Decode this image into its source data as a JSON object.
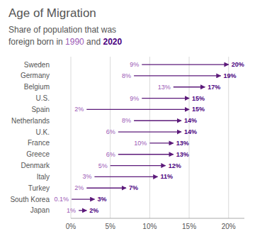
{
  "chart_data": {
    "type": "arrow",
    "orientation": "horizontal",
    "title": "Age of Migration",
    "subtitle": [
      "Share of population that was",
      "foreign born in 1990 and 2020"
    ],
    "categories": [
      "Sweden",
      "Germany",
      "Belgium",
      "U.S.",
      "Spain",
      "Netherlands",
      "U.K.",
      "France",
      "Greece",
      "Denmark",
      "Italy",
      "Turkey",
      "South Korea",
      "Japan"
    ],
    "color": "#5c1a7a",
    "series": [
      {
        "name": "1990",
        "color": "#9b59b6",
        "values": [
          9,
          8,
          13,
          9,
          2,
          8,
          6,
          10,
          6,
          5,
          3,
          2,
          0.1,
          1
        ],
        "value_labels": [
          "9%",
          "8%",
          "13%",
          "9%",
          "2%",
          "8%",
          "6%",
          "10%",
          "6%",
          "5%",
          "3%",
          "2%",
          "0.1%",
          "1%"
        ]
      },
      {
        "name": "2020",
        "color": "#4a0080",
        "values": [
          20,
          19,
          17,
          15,
          15,
          14,
          14,
          13,
          13,
          12,
          11,
          7,
          3,
          2
        ],
        "value_labels": [
          "20%",
          "19%",
          "17%",
          "15%",
          "15%",
          "14%",
          "14%",
          "13%",
          "13%",
          "12%",
          "11%",
          "7%",
          "3%",
          "2%"
        ]
      }
    ],
    "xlim": [
      0,
      22
    ],
    "xticks": [
      {
        "value": 0,
        "label": "0%"
      },
      {
        "value": 5,
        "label": "5%"
      },
      {
        "value": 10,
        "label": "10%"
      },
      {
        "value": 15,
        "label": "15%"
      },
      {
        "value": 20,
        "label": "20%"
      }
    ],
    "grid": true,
    "data_labels": true
  }
}
